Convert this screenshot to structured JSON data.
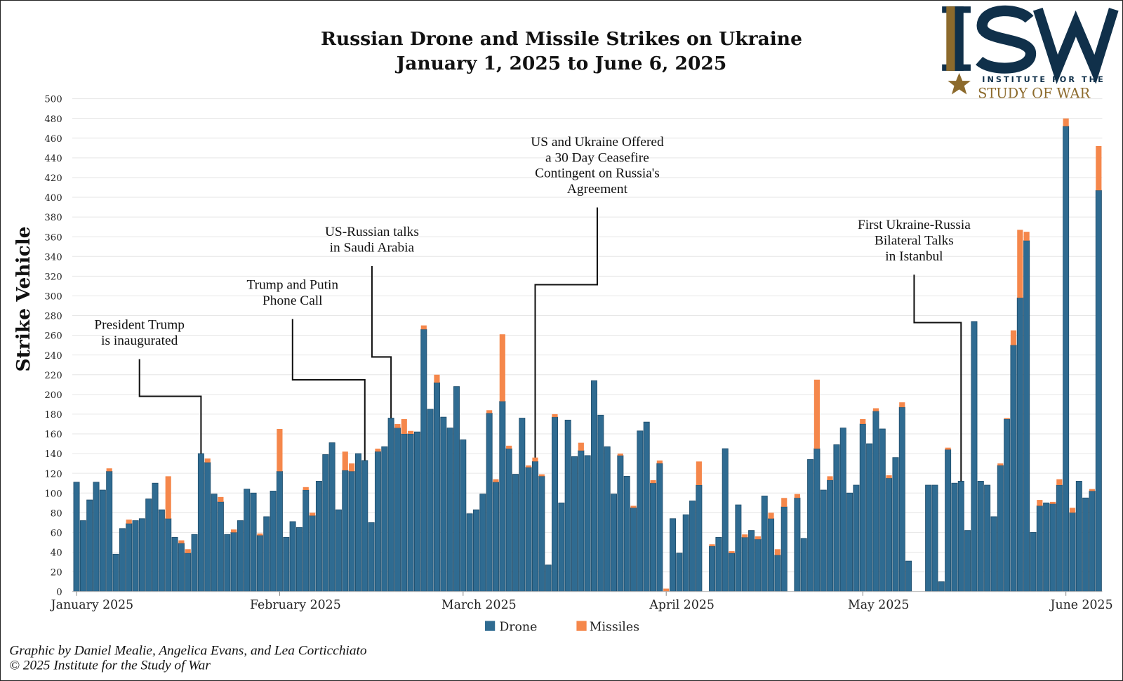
{
  "chart_data": {
    "type": "bar",
    "stacked": true,
    "title": [
      "Russian Drone and Missile Strikes on Ukraine",
      "January 1, 2025 to June 6, 2025"
    ],
    "xlabel": "",
    "ylabel": "Strike Vehicle",
    "xlim": [
      "2025-01-01",
      "2025-06-06"
    ],
    "x_interval": "daily",
    "ylim": [
      0,
      500
    ],
    "yticks": [
      0,
      20,
      40,
      60,
      80,
      100,
      120,
      140,
      160,
      180,
      200,
      220,
      240,
      260,
      280,
      300,
      320,
      340,
      360,
      380,
      400,
      420,
      440,
      460,
      480,
      500
    ],
    "xtick_labels": [
      {
        "date": "2025-01-01",
        "label": "January 2025"
      },
      {
        "date": "2025-02-01",
        "label": "February 2025"
      },
      {
        "date": "2025-03-01",
        "label": "March 2025"
      },
      {
        "date": "2025-04-01",
        "label": "April 2025"
      },
      {
        "date": "2025-05-01",
        "label": "May 2025"
      },
      {
        "date": "2025-06-01",
        "label": "June 2025"
      }
    ],
    "grid": true,
    "legend_position": "bottom-center",
    "series": [
      {
        "name": "Drone",
        "color": "#2f6b91",
        "values": [
          111,
          72,
          93,
          111,
          103,
          122,
          38,
          64,
          69,
          72,
          74,
          94,
          110,
          83,
          74,
          55,
          49,
          39,
          58,
          140,
          131,
          99,
          91,
          58,
          60,
          72,
          104,
          100,
          57,
          76,
          102,
          122,
          55,
          71,
          65,
          103,
          77,
          112,
          139,
          151,
          83,
          123,
          122,
          140,
          133,
          70,
          142,
          147,
          176,
          166,
          160,
          160,
          162,
          266,
          185,
          212,
          177,
          166,
          208,
          154,
          79,
          83,
          99,
          181,
          111,
          193,
          145,
          119,
          176,
          126,
          132,
          117,
          27,
          177,
          90,
          174,
          137,
          143,
          138,
          214,
          179,
          147,
          99,
          138,
          117,
          85,
          163,
          172,
          110,
          130,
          0,
          74,
          39,
          78,
          92,
          108,
          0,
          46,
          55,
          145,
          39,
          88,
          55,
          62,
          53,
          97,
          74,
          37,
          86,
          0,
          95,
          54,
          134,
          145,
          103,
          113,
          149,
          166,
          100,
          108,
          170,
          150,
          183,
          165,
          115,
          136,
          187,
          31,
          0,
          0,
          108,
          108,
          10,
          144,
          110,
          112,
          62,
          274,
          112,
          108,
          76,
          128,
          175,
          250,
          298,
          356,
          60,
          87,
          90,
          89,
          108,
          472,
          80,
          112,
          95,
          102,
          407
        ]
      },
      {
        "name": "Missiles",
        "color": "#f5874b",
        "values": [
          0,
          0,
          0,
          0,
          0,
          3,
          0,
          0,
          4,
          0,
          0,
          0,
          0,
          0,
          43,
          0,
          3,
          4,
          0,
          0,
          4,
          0,
          5,
          0,
          3,
          0,
          0,
          0,
          2,
          0,
          0,
          43,
          0,
          0,
          0,
          3,
          3,
          0,
          0,
          0,
          0,
          19,
          8,
          0,
          0,
          0,
          3,
          0,
          0,
          4,
          15,
          3,
          0,
          4,
          0,
          8,
          0,
          0,
          0,
          0,
          0,
          0,
          0,
          3,
          3,
          68,
          3,
          0,
          0,
          2,
          4,
          2,
          0,
          3,
          0,
          0,
          0,
          8,
          0,
          0,
          0,
          0,
          0,
          2,
          0,
          2,
          0,
          0,
          3,
          3,
          3,
          0,
          0,
          0,
          0,
          24,
          0,
          2,
          0,
          0,
          2,
          0,
          3,
          0,
          3,
          0,
          6,
          6,
          9,
          0,
          4,
          0,
          0,
          70,
          0,
          4,
          0,
          0,
          0,
          0,
          5,
          0,
          3,
          0,
          3,
          0,
          5,
          0,
          0,
          0,
          0,
          0,
          0,
          2,
          0,
          0,
          0,
          0,
          0,
          0,
          0,
          2,
          1,
          15,
          69,
          9,
          0,
          6,
          0,
          2,
          6,
          8,
          5,
          0,
          0,
          2,
          45
        ]
      }
    ],
    "annotations": [
      {
        "date": "2025-01-20",
        "text": [
          "President Trump",
          "is inaugurated"
        ]
      },
      {
        "date": "2025-02-14",
        "text": [
          "Trump and Putin",
          "Phone Call"
        ]
      },
      {
        "date": "2025-02-18",
        "text": [
          "US-Russian talks",
          "in Saudi Arabia"
        ]
      },
      {
        "date": "2025-03-12",
        "text": [
          "US and Ukraine Offered",
          "a 30 Day Ceasefire",
          "Contingent on Russia's",
          "Agreement"
        ]
      },
      {
        "date": "2025-05-16",
        "text": [
          "First Ukraine-Russia",
          "Bilateral Talks",
          "in Istanbul"
        ]
      }
    ]
  },
  "logo": {
    "letters": "ISW",
    "line1": "INSTITUTE FOR THE",
    "line2": "STUDY OF WAR",
    "navy": "#10304a",
    "gold": "#8c6a2c"
  },
  "footer": {
    "credit": "Graphic by Daniel Mealie, Angelica Evans, and Lea Corticchiato",
    "copyright": "© 2025 Institute for the Study of War"
  }
}
